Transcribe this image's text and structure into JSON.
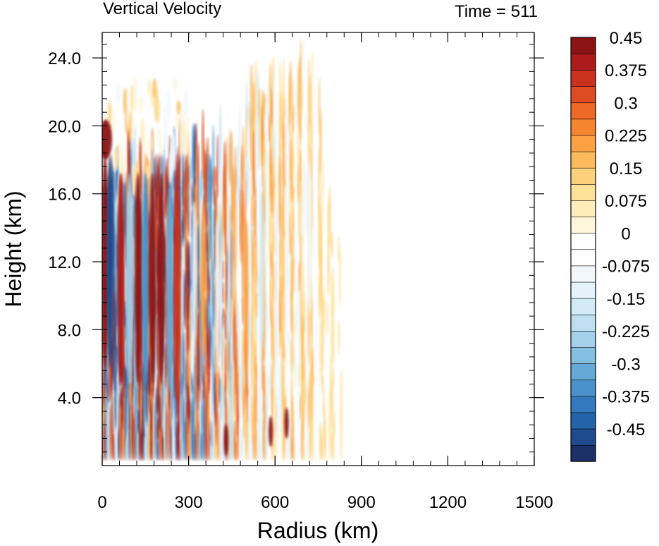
{
  "chart_data": {
    "type": "heatmap",
    "title": "Vertical Velocity",
    "time_label": "Time = 511",
    "xlabel": "Radius (km)",
    "ylabel": "Height (km)",
    "xlim": [
      0,
      1500
    ],
    "ylim": [
      0,
      25.5
    ],
    "x_ticks": [
      0,
      300,
      600,
      900,
      1200,
      1500
    ],
    "y_ticks": [
      4.0,
      8.0,
      12.0,
      16.0,
      20.0,
      24.0
    ],
    "x_tick_labels": [
      "0",
      "300",
      "600",
      "900",
      "1200",
      "1500"
    ],
    "y_tick_labels": [
      "4.0",
      "8.0",
      "12.0",
      "16.0",
      "20.0",
      "24.0"
    ],
    "colorbar": {
      "min": -0.525,
      "max": 0.525,
      "step": 0.0375,
      "labeled_values": [
        "0.45",
        "0.375",
        "0.3",
        "0.225",
        "0.15",
        "0.075",
        "0",
        "-0.075",
        "-0.15",
        "-0.225",
        "-0.3",
        "-0.375",
        "-0.45"
      ],
      "colors": [
        "#1c2f66",
        "#1f4a8e",
        "#2563a8",
        "#3479bb",
        "#4a92c9",
        "#66a9d6",
        "#84bfe2",
        "#a3d1ea",
        "#bddff0",
        "#d2eaf5",
        "#e4f2f9",
        "#f1f8fc",
        "#ffffff",
        "#ffffff",
        "#fdf6da",
        "#fdedb9",
        "#fde29a",
        "#fdd07b",
        "#fcba5e",
        "#faa243",
        "#f5862f",
        "#ec6a25",
        "#dd4c22",
        "#c9321f",
        "#ac1c1c",
        "#8b1313"
      ]
    },
    "features": [
      {
        "r": 12,
        "z": 19.2,
        "value": 0.55
      },
      {
        "r": 10,
        "z": 12.0,
        "value": 0.5
      },
      {
        "r": 28,
        "z": 12.0,
        "value": -0.5
      },
      {
        "r": 65,
        "z": 11.0,
        "value": 0.35
      },
      {
        "r": 95,
        "z": 11.0,
        "value": -0.3
      },
      {
        "r": 125,
        "z": 11.0,
        "value": 0.4
      },
      {
        "r": 150,
        "z": 11.0,
        "value": -0.4
      },
      {
        "r": 175,
        "z": 11.0,
        "value": 0.5
      },
      {
        "r": 205,
        "z": 11.0,
        "value": 0.45
      },
      {
        "r": 235,
        "z": 10.5,
        "value": -0.35
      },
      {
        "r": 260,
        "z": 10.0,
        "value": 0.3
      },
      {
        "r": 320,
        "z": 11.0,
        "value": -0.12
      },
      {
        "r": 350,
        "z": 11.0,
        "value": 0.15
      },
      {
        "r": 400,
        "z": 10.0,
        "value": -0.12
      },
      {
        "r": 500,
        "z": 10.0,
        "value": 0.18
      },
      {
        "r": 555,
        "z": 11.5,
        "value": -0.2
      },
      {
        "r": 720,
        "z": 13.5,
        "value": -0.15
      },
      {
        "r": 430,
        "z": 1.5,
        "value": 0.55
      },
      {
        "r": 585,
        "z": 2.0,
        "value": 0.5
      },
      {
        "r": 640,
        "z": 2.5,
        "value": 0.4
      }
    ]
  }
}
